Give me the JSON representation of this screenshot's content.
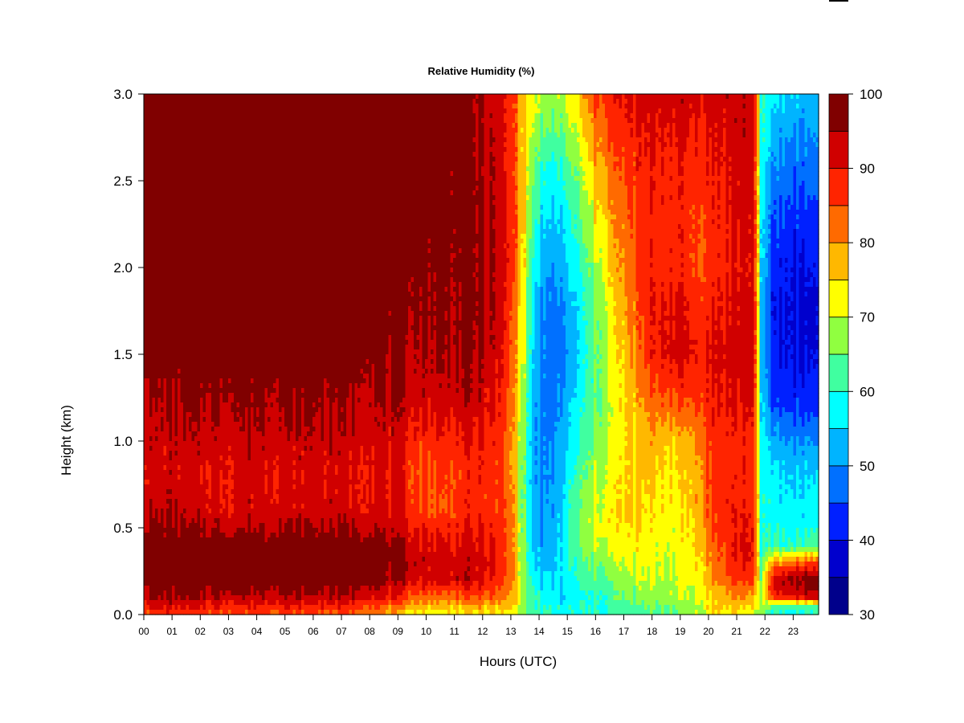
{
  "chart_data": {
    "type": "heatmap",
    "title": "Relative Humidity (%)",
    "xlabel": "Hours (UTC)",
    "ylabel": "Height (km)",
    "x_ticks": [
      "00",
      "01",
      "02",
      "03",
      "04",
      "05",
      "06",
      "07",
      "08",
      "09",
      "10",
      "11",
      "12",
      "13",
      "14",
      "15",
      "16",
      "17",
      "18",
      "19",
      "20",
      "21",
      "22",
      "23"
    ],
    "y_ticks": [
      "0.0",
      "0.5",
      "1.0",
      "1.5",
      "2.0",
      "2.5",
      "3.0"
    ],
    "xlim": [
      0,
      23.9
    ],
    "ylim": [
      0,
      3.0
    ],
    "colorbar": {
      "ticks": [
        "30",
        "40",
        "50",
        "60",
        "70",
        "80",
        "90",
        "100"
      ],
      "range": [
        30,
        100
      ],
      "step": 5,
      "colors": [
        "#00008b",
        "#0000cd",
        "#0020ff",
        "#0070ff",
        "#00b4ff",
        "#00ffff",
        "#40ffa0",
        "#90ff40",
        "#ffff00",
        "#ffb800",
        "#ff6a00",
        "#ff2400",
        "#d00000",
        "#800000"
      ]
    },
    "time_series_hours": [
      0,
      1,
      2,
      3,
      4,
      5,
      6,
      7,
      8,
      8.7,
      9.2,
      9.8,
      10.5,
      11.2,
      12,
      12.6,
      13.1,
      13.45,
      13.8,
      14.3,
      14.8,
      15.4,
      16,
      16.5,
      17,
      17.5,
      18,
      18.5,
      19,
      19.5,
      19.9,
      20.4,
      21,
      21.5,
      21.7,
      21.85,
      22.3,
      22.8,
      23.3,
      23.9
    ],
    "profile_heights_km": [
      0,
      0.05,
      0.1,
      0.2,
      0.3,
      0.4,
      0.5,
      0.6,
      0.8,
      1.0,
      1.2,
      1.5,
      1.8,
      2.0,
      2.3,
      2.6,
      3.0
    ],
    "rh_percent": [
      [
        86,
        91,
        94,
        99,
        99,
        99,
        96,
        94,
        92,
        93,
        94,
        99,
        99,
        99,
        99,
        99,
        99
      ],
      [
        87,
        91,
        95,
        99,
        99,
        99,
        96,
        94,
        92,
        93,
        94,
        99,
        99,
        99,
        99,
        99,
        99
      ],
      [
        85,
        90,
        94,
        99,
        99,
        99,
        95,
        92,
        91,
        93,
        95,
        99,
        99,
        99,
        99,
        99,
        99
      ],
      [
        86,
        90,
        94,
        99,
        99,
        99,
        94,
        91,
        91,
        93,
        96,
        99,
        99,
        99,
        99,
        99,
        99
      ],
      [
        85,
        90,
        94,
        99,
        99,
        99,
        95,
        93,
        92,
        94,
        96,
        99,
        99,
        99,
        99,
        99,
        99
      ],
      [
        85,
        90,
        94,
        99,
        99,
        99,
        95,
        92,
        91,
        93,
        96,
        99,
        99,
        99,
        99,
        99,
        99
      ],
      [
        84,
        89,
        94,
        99,
        99,
        99,
        95,
        93,
        92,
        94,
        96,
        99,
        99,
        99,
        99,
        99,
        99
      ],
      [
        84,
        89,
        94,
        99,
        99,
        99,
        95,
        92,
        91,
        93,
        95,
        99,
        99,
        99,
        99,
        99,
        99
      ],
      [
        82,
        88,
        93,
        99,
        99,
        99,
        95,
        92,
        91,
        93,
        95,
        98,
        99,
        99,
        99,
        99,
        99
      ],
      [
        77,
        83,
        90,
        95,
        97,
        96,
        93,
        91,
        90,
        92,
        94,
        96,
        98,
        99,
        99,
        99,
        99
      ],
      [
        74,
        80,
        86,
        94,
        97,
        94,
        91,
        89,
        88,
        90,
        93,
        95,
        97,
        98,
        99,
        99,
        99
      ],
      [
        72,
        78,
        84,
        92,
        93,
        92,
        90,
        86,
        85,
        88,
        92,
        95,
        97,
        98,
        99,
        99,
        99
      ],
      [
        72,
        78,
        83,
        92,
        93,
        91,
        88,
        84,
        86,
        88,
        92,
        95,
        96,
        97,
        97,
        98,
        99
      ],
      [
        73,
        78,
        84,
        93,
        93,
        92,
        89,
        87,
        87,
        89,
        93,
        96,
        97,
        97,
        98,
        98,
        99
      ],
      [
        73,
        79,
        85,
        92,
        92,
        91,
        90,
        88,
        88,
        89,
        92,
        95,
        96,
        96,
        96,
        95,
        95
      ],
      [
        72,
        77,
        82,
        88,
        89,
        88,
        87,
        86,
        86,
        87,
        89,
        91,
        93,
        93,
        93,
        92,
        91
      ],
      [
        70,
        75,
        78,
        80,
        80,
        80,
        80,
        80,
        79,
        79,
        80,
        82,
        84,
        86,
        86,
        86,
        86
      ],
      [
        66,
        68,
        69,
        68,
        67,
        66,
        65,
        65,
        65,
        66,
        68,
        70,
        72,
        74,
        76,
        76,
        76
      ],
      [
        62,
        62,
        61,
        58,
        55,
        54,
        53,
        52,
        51,
        51,
        52,
        54,
        56,
        58,
        62,
        66,
        72
      ],
      [
        60,
        59,
        56,
        54,
        52,
        51,
        50,
        49,
        48,
        47,
        46,
        46,
        47,
        49,
        53,
        58,
        67
      ],
      [
        59,
        58,
        55,
        56,
        56,
        56,
        55,
        55,
        53,
        52,
        50,
        48,
        49,
        52,
        56,
        61,
        69
      ],
      [
        59,
        59,
        57,
        60,
        62,
        64,
        65,
        64,
        62,
        59,
        57,
        55,
        56,
        59,
        62,
        67,
        75
      ],
      [
        60,
        60,
        60,
        63,
        66,
        69,
        72,
        70,
        68,
        66,
        64,
        64,
        65,
        68,
        73,
        78,
        86
      ],
      [
        60,
        61,
        63,
        65,
        68,
        71,
        74,
        74,
        72,
        71,
        70,
        71,
        73,
        76,
        79,
        83,
        89
      ],
      [
        61,
        62,
        65,
        67,
        70,
        72,
        74,
        75,
        74,
        74,
        74,
        76,
        78,
        80,
        82,
        85,
        90
      ],
      [
        62,
        64,
        66,
        69,
        71,
        73,
        74,
        75,
        75,
        76,
        78,
        82,
        84,
        85,
        86,
        88,
        91
      ],
      [
        64,
        65,
        67,
        70,
        71,
        72,
        73,
        74,
        76,
        78,
        82,
        88,
        89,
        88,
        88,
        89,
        92
      ],
      [
        65,
        66,
        68,
        70,
        71,
        72,
        73,
        74,
        75,
        77,
        84,
        92,
        91,
        89,
        89,
        90,
        93
      ],
      [
        66,
        67,
        69,
        71,
        71,
        72,
        72,
        73,
        74,
        76,
        84,
        92,
        91,
        88,
        88,
        89,
        93
      ],
      [
        68,
        69,
        70,
        72,
        73,
        75,
        76,
        77,
        78,
        80,
        85,
        90,
        88,
        85,
        86,
        88,
        92
      ],
      [
        72,
        73,
        75,
        77,
        78,
        80,
        82,
        83,
        84,
        85,
        88,
        90,
        88,
        86,
        87,
        89,
        92
      ],
      [
        74,
        76,
        78,
        82,
        84,
        85,
        87,
        88,
        88,
        88,
        90,
        92,
        90,
        88,
        89,
        90,
        93
      ],
      [
        73,
        76,
        80,
        86,
        89,
        90,
        90,
        89,
        88,
        88,
        90,
        92,
        91,
        90,
        91,
        92,
        94
      ],
      [
        72,
        75,
        80,
        87,
        90,
        91,
        91,
        90,
        89,
        89,
        91,
        93,
        92,
        91,
        92,
        93,
        95
      ],
      [
        70,
        73,
        76,
        80,
        82,
        84,
        84,
        84,
        84,
        84,
        85,
        86,
        86,
        86,
        86,
        86,
        87
      ],
      [
        67,
        68,
        66,
        64,
        61,
        58,
        58,
        58,
        57,
        56,
        55,
        54,
        54,
        55,
        56,
        58,
        60
      ],
      [
        59,
        63,
        88,
        93,
        80,
        61,
        59,
        58,
        57,
        52,
        45,
        41,
        40,
        42,
        45,
        50,
        56
      ],
      [
        58,
        62,
        90,
        96,
        82,
        60,
        58,
        57,
        55,
        50,
        44,
        40,
        39,
        41,
        44,
        48,
        55
      ],
      [
        59,
        63,
        92,
        98,
        84,
        62,
        58,
        57,
        55,
        50,
        43,
        39,
        38,
        40,
        43,
        47,
        53
      ],
      [
        60,
        64,
        94,
        99,
        86,
        64,
        59,
        58,
        55,
        50,
        43,
        40,
        39,
        41,
        44,
        48,
        54
      ]
    ]
  }
}
